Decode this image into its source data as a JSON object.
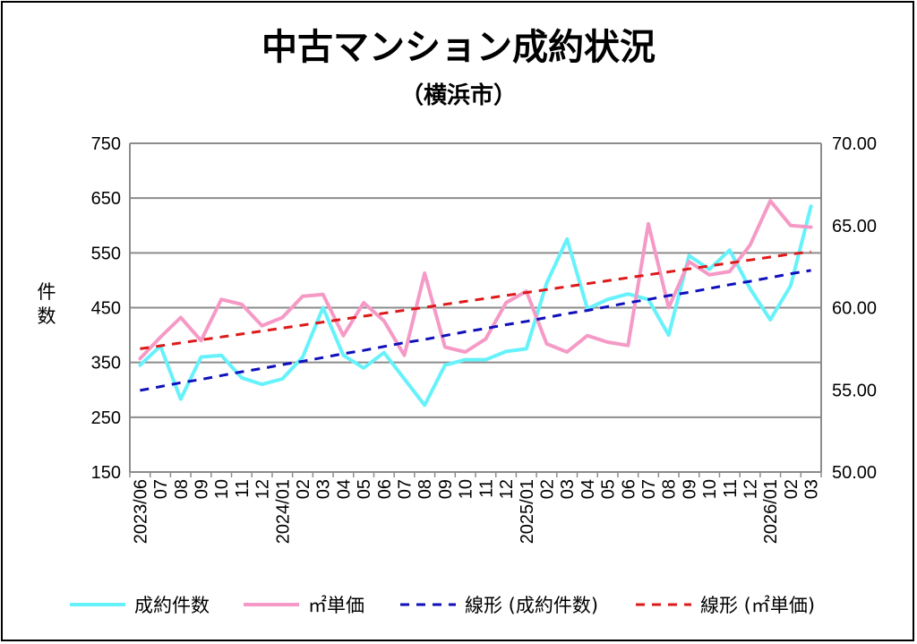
{
  "chart_data": {
    "type": "line",
    "title": "中古マンション成約状況",
    "subtitle": "（横浜市）",
    "ylabel": "件\n数",
    "y_left": {
      "lim": [
        150,
        750
      ],
      "ticks": [
        150,
        250,
        350,
        450,
        550,
        650,
        750
      ]
    },
    "y_right": {
      "lim": [
        50.0,
        70.0
      ],
      "ticks": [
        "50.00",
        "55.00",
        "60.00",
        "65.00",
        "70.00"
      ]
    },
    "grid": true,
    "legend_position": "bottom",
    "categories": [
      "2023/06",
      "07",
      "08",
      "09",
      "10",
      "11",
      "12",
      "2024/01",
      "02",
      "03",
      "04",
      "05",
      "06",
      "07",
      "08",
      "09",
      "10",
      "11",
      "12",
      "2025/01",
      "02",
      "03",
      "04",
      "05",
      "06",
      "07",
      "08",
      "09",
      "10",
      "11",
      "12",
      "2026/01",
      "02",
      "03"
    ],
    "series": [
      {
        "name": "成約件数",
        "axis": "left",
        "color": "#66f2fb",
        "style": "solid",
        "values": [
          345,
          380,
          283,
          360,
          363,
          322,
          310,
          320,
          360,
          450,
          363,
          340,
          368,
          320,
          272,
          345,
          355,
          355,
          370,
          375,
          495,
          575,
          448,
          465,
          475,
          465,
          400,
          545,
          520,
          555,
          485,
          428,
          490,
          635
        ]
      },
      {
        "name": "㎡単価",
        "axis": "right",
        "color": "#f59ac6",
        "style": "solid",
        "values": [
          56.9,
          58.2,
          59.4,
          58.0,
          60.5,
          60.2,
          58.9,
          59.4,
          60.7,
          60.8,
          58.3,
          60.3,
          59.2,
          57.1,
          62.1,
          57.6,
          57.3,
          58.1,
          60.3,
          61.0,
          57.8,
          57.3,
          58.3,
          57.9,
          57.7,
          65.1,
          60.0,
          62.8,
          62.0,
          62.2,
          63.8,
          66.5,
          65.0,
          64.9
        ]
      },
      {
        "name": "線形 (成約件数)",
        "axis": "left",
        "color": "#1010bb",
        "style": "dashed",
        "values": [
          299,
          306,
          313,
          319,
          326,
          333,
          339,
          346,
          352,
          359,
          366,
          372,
          379,
          386,
          392,
          399,
          406,
          412,
          419,
          425,
          432,
          439,
          445,
          452,
          459,
          465,
          472,
          478,
          485,
          492,
          498,
          505,
          512,
          518
        ]
      },
      {
        "name": "線形 (㎡単価)",
        "axis": "right",
        "color": "#dd1a1a",
        "style": "dashed",
        "values": [
          57.5,
          57.68,
          57.86,
          58.04,
          58.22,
          58.4,
          58.58,
          58.76,
          58.94,
          59.12,
          59.3,
          59.48,
          59.66,
          59.84,
          60.02,
          60.2,
          60.38,
          60.56,
          60.74,
          60.92,
          61.1,
          61.28,
          61.46,
          61.64,
          61.82,
          62.0,
          62.18,
          62.36,
          62.54,
          62.72,
          62.9,
          63.08,
          63.26,
          63.4
        ]
      }
    ]
  }
}
